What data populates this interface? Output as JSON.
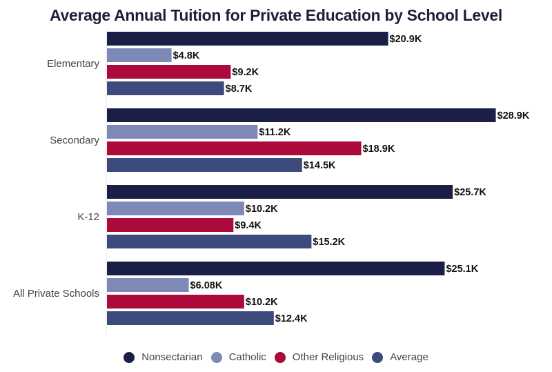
{
  "chart_data": {
    "type": "bar",
    "orientation": "horizontal",
    "title": "Average Annual Tuition for Private Education by School Level",
    "xlabel": "",
    "ylabel": "",
    "xlim": [
      0,
      29
    ],
    "grid": false,
    "legend_position": "bottom",
    "categories": [
      "Elementary",
      "Secondary",
      "K-12",
      "All Private Schools"
    ],
    "series": [
      {
        "name": "Nonsectarian",
        "color": "#1b1f47",
        "values": [
          20.9,
          28.9,
          25.7,
          25.1
        ],
        "labels": [
          "$20.9K",
          "$28.9K",
          "$25.7K",
          "$25.1K"
        ]
      },
      {
        "name": "Catholic",
        "color": "#7f89b8",
        "values": [
          4.8,
          11.2,
          10.2,
          6.08
        ],
        "labels": [
          "$4.8K",
          "$11.2K",
          "$10.2K",
          "$6.08K"
        ]
      },
      {
        "name": "Other Religious",
        "color": "#ad0a3c",
        "values": [
          9.2,
          18.9,
          9.4,
          10.2
        ],
        "labels": [
          "$9.2K",
          "$18.9K",
          "$9.4K",
          "$10.2K"
        ]
      },
      {
        "name": "Average",
        "color": "#3d4a7c",
        "values": [
          8.7,
          14.5,
          15.2,
          12.4
        ],
        "labels": [
          "$8.7K",
          "$14.5K",
          "$15.2K",
          "$12.4K"
        ]
      }
    ]
  }
}
